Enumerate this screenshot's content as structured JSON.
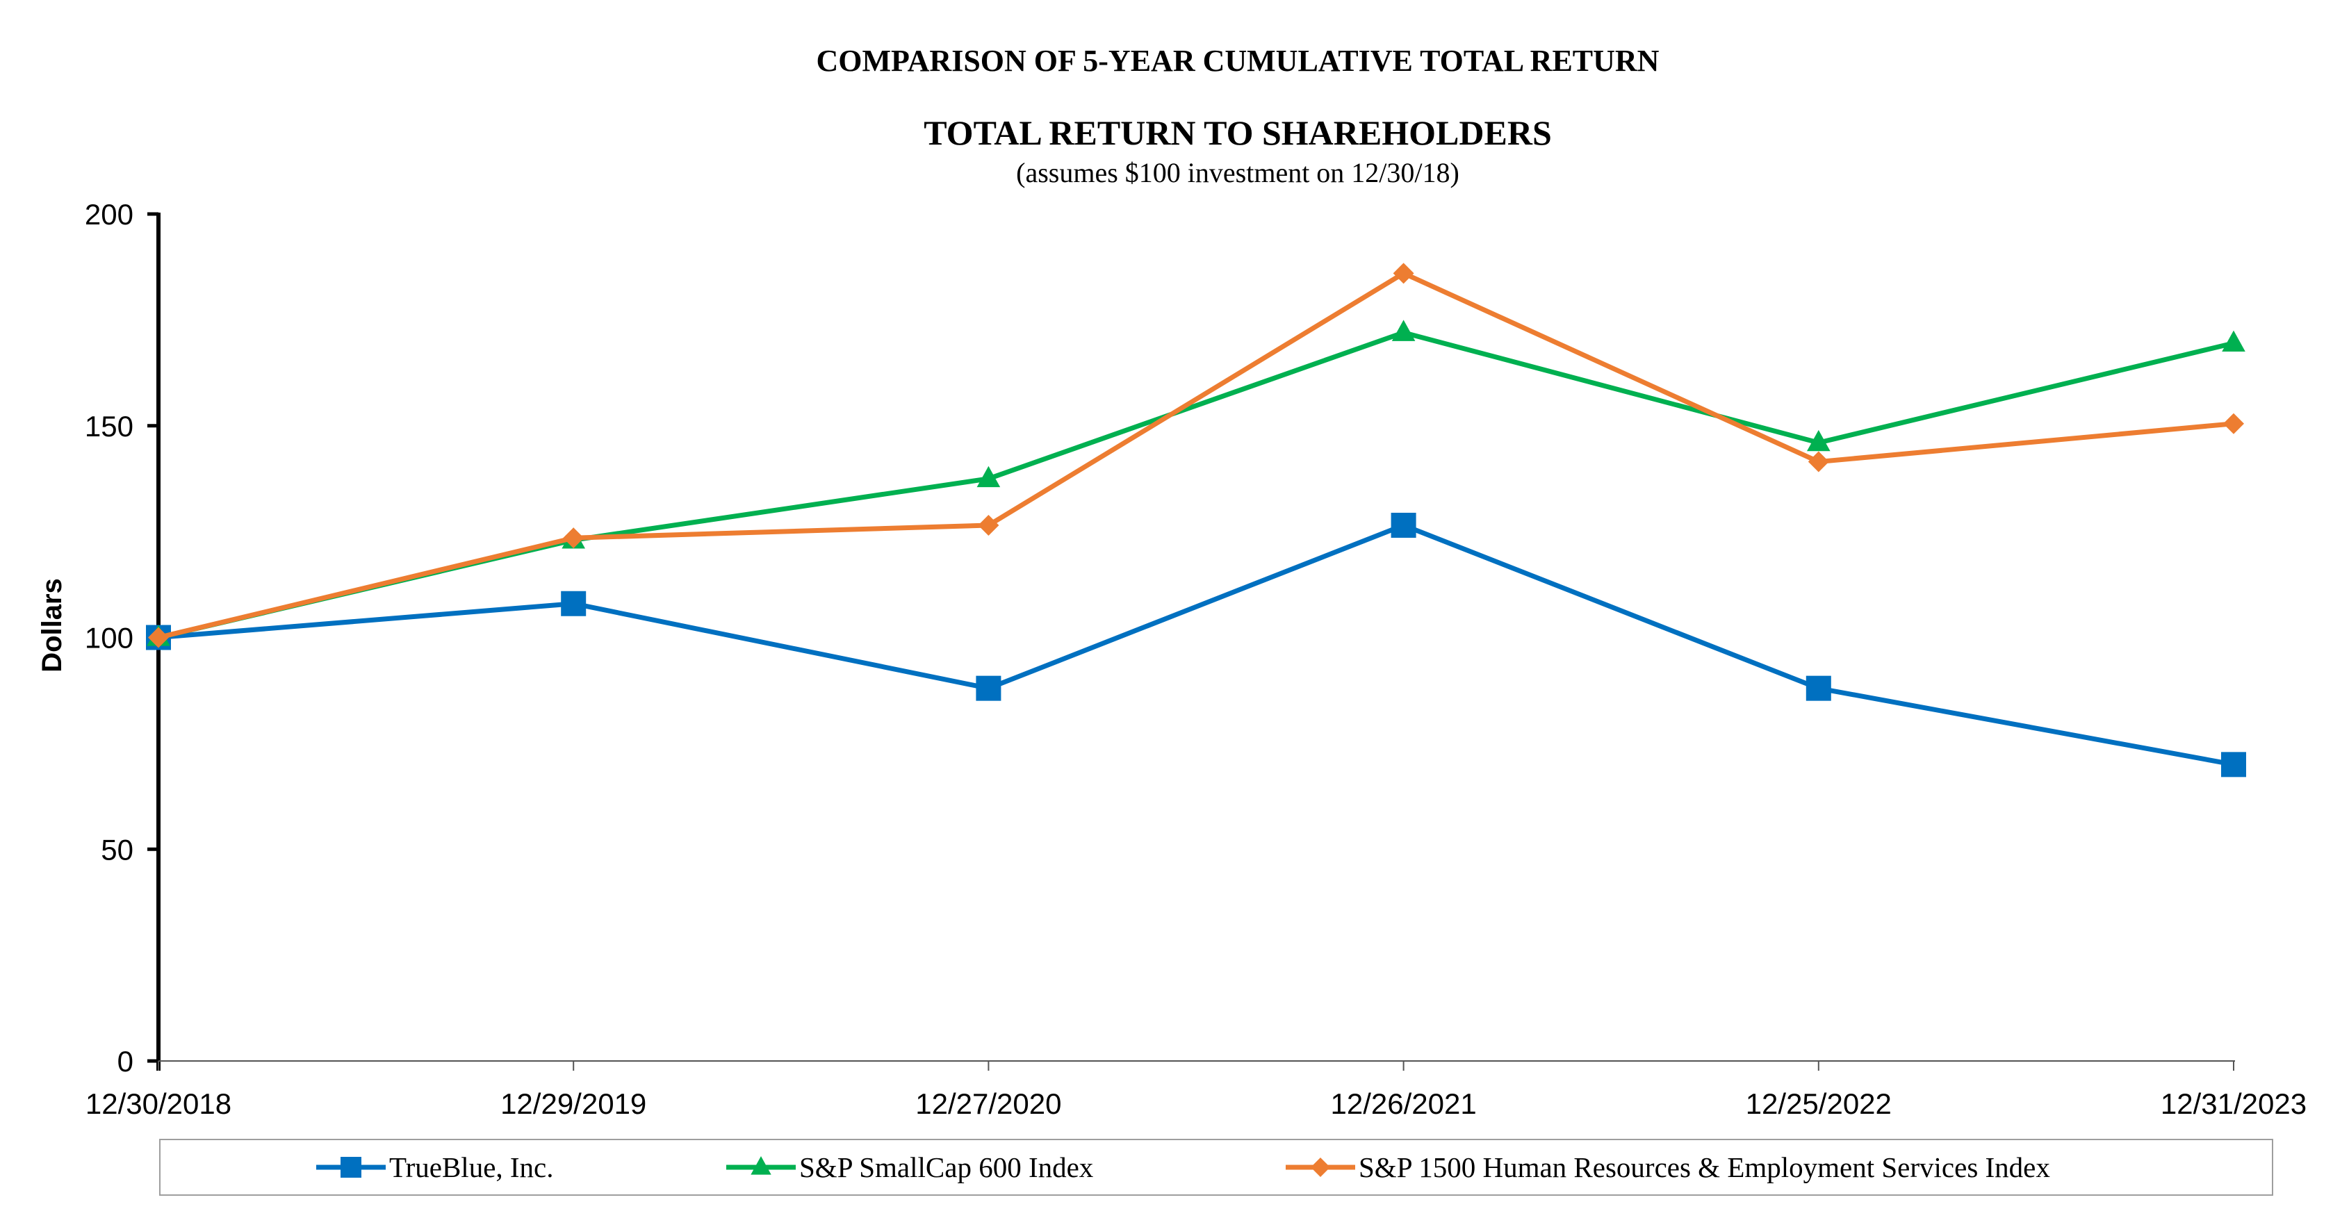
{
  "chart_data": {
    "type": "line",
    "title": "COMPARISON OF 5-YEAR CUMULATIVE TOTAL RETURN",
    "subtitle": "TOTAL RETURN TO SHAREHOLDERS",
    "note": "(assumes $100 investment on 12/30/18)",
    "xlabel": "",
    "ylabel": "Dollars",
    "ylim": [
      0,
      200
    ],
    "yticks": [
      "0",
      "50",
      "100",
      "150",
      "200"
    ],
    "categories": [
      "12/30/2018",
      "12/29/2019",
      "12/27/2020",
      "12/26/2021",
      "12/25/2022",
      "12/31/2023"
    ],
    "series": [
      {
        "name": "TrueBlue, Inc.",
        "color": "#0070C0",
        "marker": "square",
        "values": [
          100,
          108,
          88,
          126.5,
          88,
          70
        ]
      },
      {
        "name": "S&P SmallCap 600 Index",
        "color": "#00B050",
        "marker": "triangle",
        "values": [
          100,
          123,
          137.5,
          172,
          146,
          169.5
        ]
      },
      {
        "name": "S&P 1500 Human Resources & Employment Services Index",
        "color": "#ED7D31",
        "marker": "diamond",
        "values": [
          100,
          123.5,
          126.5,
          186,
          141.5,
          150.5
        ]
      }
    ],
    "legend_position": "bottom"
  }
}
